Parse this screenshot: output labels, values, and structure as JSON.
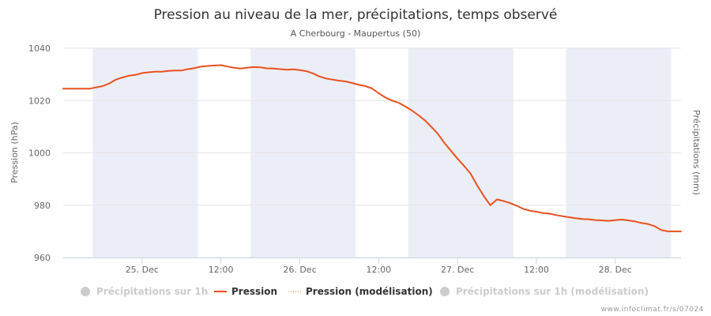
{
  "chart_data": {
    "type": "line",
    "title": "Pression au niveau de la mer, précipitations, temps observé",
    "subtitle": "A Cherbourg - Maupertus (50)",
    "ylabel_left": "Pression (hPa)",
    "ylabel_right": "Précipitations (mm)",
    "ylim": [
      960,
      1040
    ],
    "yticks": [
      "960",
      "980",
      "1000",
      "1020",
      "1040"
    ],
    "xlim_hours": [
      0,
      94
    ],
    "xticks": [
      {
        "label": "25. Dec",
        "hour": 12
      },
      {
        "label": "12:00",
        "hour": 24
      },
      {
        "label": "26. Dec",
        "hour": 36
      },
      {
        "label": "12:00",
        "hour": 48
      },
      {
        "label": "27. Dec",
        "hour": 60
      },
      {
        "label": "12:00",
        "hour": 72
      },
      {
        "label": "28. Dec",
        "hour": 84
      }
    ],
    "night_bands_hours": [
      [
        4.5,
        20.5
      ],
      [
        28.5,
        44.5
      ],
      [
        52.5,
        68.5
      ],
      [
        76.5,
        92.5
      ]
    ],
    "grid": true,
    "series": [
      {
        "name": "Pression",
        "color": "#e8501f",
        "x_hours": [
          0,
          2,
          4,
          6,
          7,
          8,
          9,
          10,
          11,
          12,
          13,
          14,
          15,
          16,
          17,
          18,
          19,
          20,
          21,
          22,
          23,
          24,
          25,
          26,
          27,
          28,
          29,
          30,
          31,
          32,
          33,
          34,
          35,
          36,
          37,
          38,
          39,
          40,
          41,
          42,
          43,
          44,
          45,
          46,
          47,
          48,
          49,
          50,
          51,
          52,
          53,
          54,
          55,
          56,
          57,
          58,
          59,
          60,
          61,
          62,
          63,
          64,
          65,
          66,
          67,
          68,
          69,
          70,
          71,
          72,
          73,
          74,
          75,
          76,
          77,
          78,
          79,
          80,
          81,
          82,
          83,
          84,
          85,
          86,
          87,
          88,
          89,
          90,
          91,
          92,
          93,
          94
        ],
        "values": [
          1024.5,
          1024.5,
          1024.5,
          1025.5,
          1026.5,
          1028.0,
          1028.8,
          1029.5,
          1029.8,
          1030.5,
          1030.8,
          1031.0,
          1031.0,
          1031.3,
          1031.5,
          1031.5,
          1032.0,
          1032.4,
          1033.0,
          1033.2,
          1033.4,
          1033.5,
          1033.0,
          1032.5,
          1032.2,
          1032.5,
          1032.8,
          1032.7,
          1032.3,
          1032.2,
          1032.0,
          1031.8,
          1031.9,
          1031.6,
          1031.2,
          1030.4,
          1029.2,
          1028.4,
          1028.0,
          1027.6,
          1027.3,
          1026.7,
          1026.0,
          1025.5,
          1024.6,
          1022.8,
          1021.2,
          1020.0,
          1019.2,
          1017.8,
          1016.3,
          1014.5,
          1012.5,
          1010.0,
          1007.3,
          1003.8,
          1000.8,
          997.8,
          995.0,
          992.0,
          987.5,
          983.5,
          980.0,
          982.2,
          981.6,
          980.8,
          979.8,
          978.6,
          977.9,
          977.5,
          977.0,
          976.8,
          976.2,
          975.8,
          975.4,
          975.0,
          974.7,
          974.6,
          974.3,
          974.2,
          974.0,
          974.3,
          974.5,
          974.2,
          973.8,
          973.2,
          972.8,
          972.0,
          970.5,
          970.0,
          970.0,
          970.0
        ]
      }
    ]
  },
  "legend": [
    {
      "label": "Précipitations sur 1h",
      "state": "hidden",
      "color": "#cccccc",
      "symbol": "circle"
    },
    {
      "label": "Pression",
      "state": "visible",
      "color": "#e8501f",
      "symbol": "line"
    },
    {
      "label": "Pression (modélisation)",
      "state": "visible",
      "color": "#e8a060",
      "symbol": "dotted-line"
    },
    {
      "label": "Précipitations sur 1h (modélisation)",
      "state": "hidden",
      "color": "#cccccc",
      "symbol": "circle"
    }
  ],
  "credit": "www.infoclimat.fr/s/07024",
  "colors": {
    "night_band": "#eceef7",
    "grid": "#e6e6e6",
    "hidden_legend": "#cccccc",
    "visible_legend_text": "#333333"
  }
}
